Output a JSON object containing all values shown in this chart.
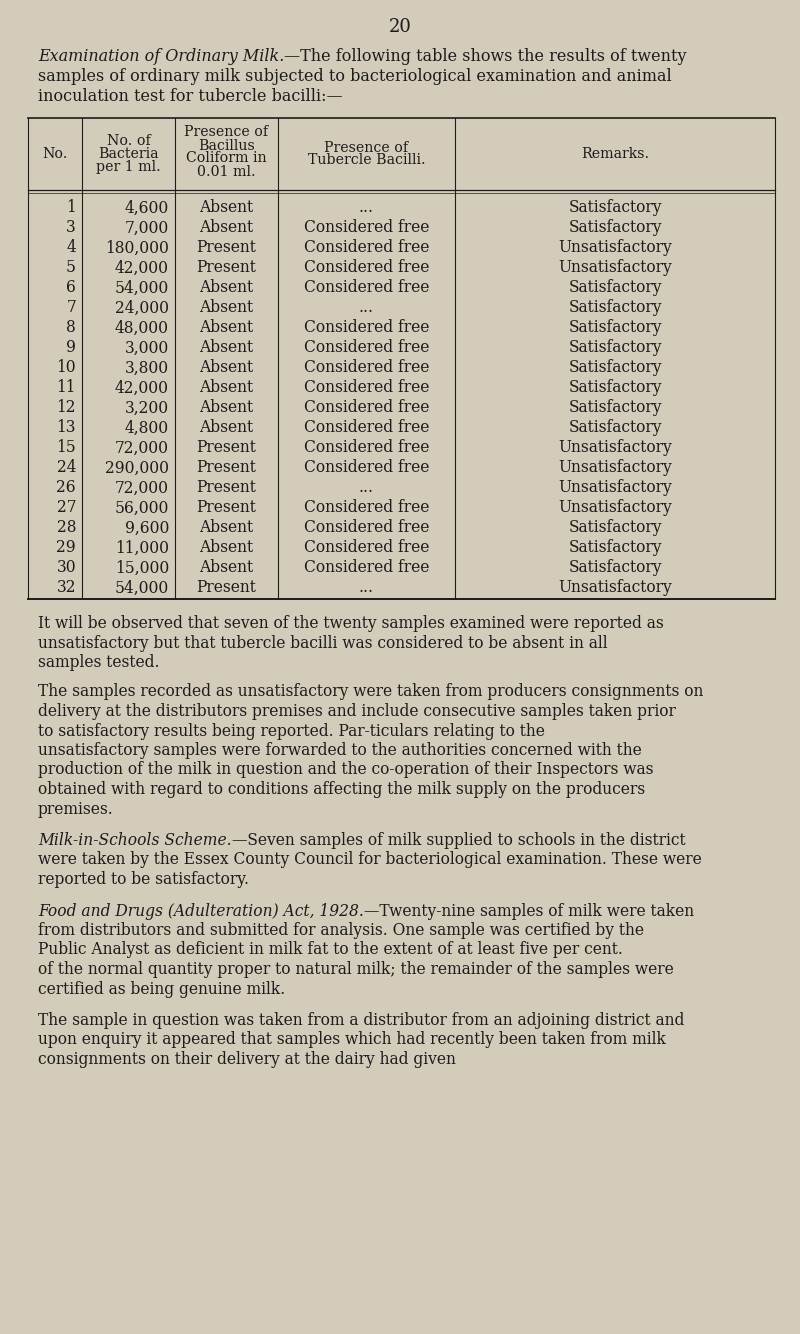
{
  "page_number": "20",
  "bg_color": "#d4ccba",
  "text_color": "#1c1c1c",
  "intro_italic": "Examination of Ordinary Milk.",
  "intro_rest": "—The following table shows the results of twenty samples of ordinary milk subjected to bacteriological examination and animal inoculation test for tubercle bacilli:—",
  "col_headers_line1": [
    "No.",
    "No. of",
    "Presence of",
    "Presence of",
    "Remarks."
  ],
  "col_headers_line2": [
    "",
    "Bacteria",
    "Bacillus",
    "Tubercle Bacilli.",
    ""
  ],
  "col_headers_line3": [
    "",
    "per 1 ml.",
    "Coliform in",
    "",
    ""
  ],
  "col_headers_line4": [
    "",
    "",
    "0.01 ml.",
    "",
    ""
  ],
  "col_x_bounds": [
    28,
    82,
    175,
    278,
    455,
    775
  ],
  "table_data": [
    [
      "1",
      "4,600",
      "Absent",
      "...",
      "Satisfactory"
    ],
    [
      "3",
      "7,000",
      "Absent",
      "Considered free",
      "Satisfactory"
    ],
    [
      "4",
      "180,000",
      "Present",
      "Considered free",
      "Unsatisfactory"
    ],
    [
      "5",
      "42,000",
      "Present",
      "Considered free",
      "Unsatisfactory"
    ],
    [
      "6",
      "54,000",
      "Absent",
      "Considered free",
      "Satisfactory"
    ],
    [
      "7",
      "24,000",
      "Absent",
      "...",
      "Satisfactory"
    ],
    [
      "8",
      "48,000",
      "Absent",
      "Considered free",
      "Satisfactory"
    ],
    [
      "9",
      "3,000",
      "Absent",
      "Considered free",
      "Satisfactory"
    ],
    [
      "10",
      "3,800",
      "Absent",
      "Considered free",
      "Satisfactory"
    ],
    [
      "11",
      "42,000",
      "Absent",
      "Considered free",
      "Satisfactory"
    ],
    [
      "12",
      "3,200",
      "Absent",
      "Considered free",
      "Satisfactory"
    ],
    [
      "13",
      "4,800",
      "Absent",
      "Considered free",
      "Satisfactory"
    ],
    [
      "15",
      "72,000",
      "Present",
      "Considered free",
      "Unsatisfactory"
    ],
    [
      "24",
      "290,000",
      "Present",
      "Considered free",
      "Unsatisfactory"
    ],
    [
      "26",
      "72,000",
      "Present",
      "...",
      "Unsatisfactory"
    ],
    [
      "27",
      "56,000",
      "Present",
      "Considered free",
      "Unsatisfactory"
    ],
    [
      "28",
      "9,600",
      "Absent",
      "Considered free",
      "Satisfactory"
    ],
    [
      "29",
      "11,000",
      "Absent",
      "Considered free",
      "Satisfactory"
    ],
    [
      "30",
      "15,000",
      "Absent",
      "Considered free",
      "Satisfactory"
    ],
    [
      "32",
      "54,000",
      "Present",
      "...",
      "Unsatisfactory"
    ]
  ],
  "paragraph1": "It will be observed that seven of the twenty samples examined were reported as unsatisfactory but that tubercle bacilli was considered to be absent in all samples tested.",
  "paragraph2_indent": "The samples recorded as unsatisfactory were taken from producers consignments on delivery at the distributors premises and include consecutive samples taken prior to satisfactory results being reported. Par-ticulars relating to the unsatisfactory samples were forwarded to the authorities concerned with the production of the milk in question and the co-operation of their Inspectors was obtained with regard to conditions affecting the milk supply on the producers premises.",
  "paragraph3_italic": "Milk-in-Schools Scheme.",
  "paragraph3_rest": "—Seven samples of milk supplied to schools in the district were taken by the Essex County Council for bacteriological examination. These were reported to be satisfactory.",
  "paragraph4_italic": "Food and Drugs (Adulteration) Act, 1928.",
  "paragraph4_rest": "—Twenty-nine samples of milk were taken from distributors and submitted for analysis. One sample was certified by the Public Analyst as deficient in milk fat to the extent of at least five per cent. of the normal quantity proper to natural milk; the remainder of the samples were certified as being genuine milk.",
  "paragraph5_indent": "The sample in question was taken from a distributor from an adjoining district and upon enquiry it appeared that samples which had recently been taken from milk consignments on their delivery at the dairy had given"
}
